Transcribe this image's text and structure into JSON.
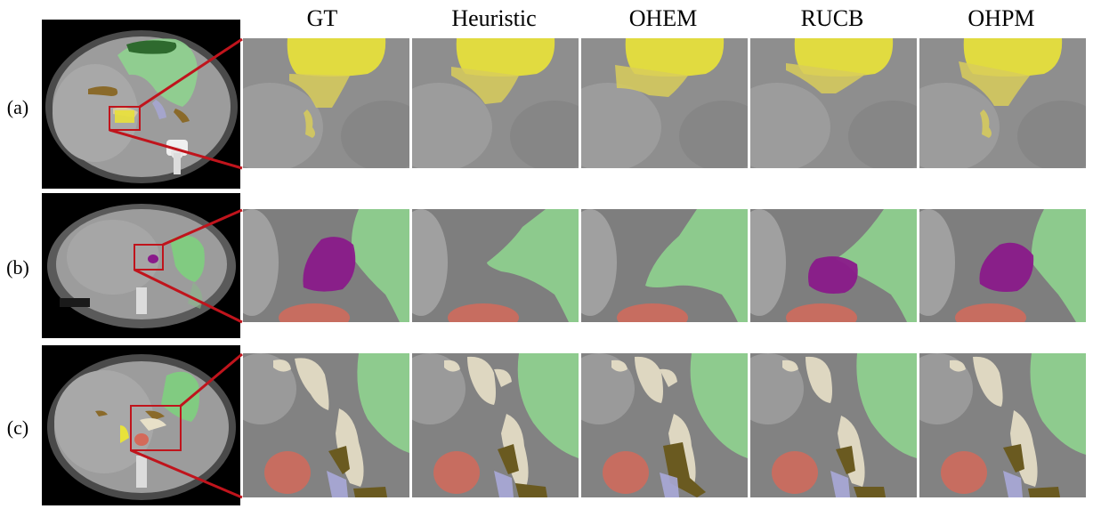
{
  "columns": [
    "GT",
    "Heuristic",
    "OHEM",
    "RUCB",
    "OHPM"
  ],
  "rows": [
    {
      "label": "(a)"
    },
    {
      "label": "(b)"
    },
    {
      "label": "(c)"
    }
  ],
  "colors": {
    "liver_bg": "#9a9a9a",
    "stomach": "#7ed07e",
    "yellow_organ": "#e8e23a",
    "purple_organ": "#8a1a8a",
    "red_organ": "#d46a5a",
    "pancreas": "#e8e0c8",
    "brown_organ": "#6a5a20",
    "lavender_organ": "#a8a8d8",
    "box_red": "#c0141c"
  }
}
